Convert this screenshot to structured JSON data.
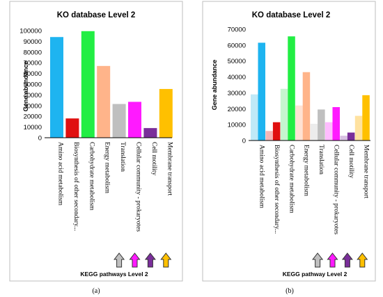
{
  "chart_data": [
    {
      "type": "bar",
      "title": "KO database Level 2",
      "ylabel": "Gene abundance",
      "ylim": [
        0,
        100000
      ],
      "yticks": [
        0,
        10000,
        20000,
        30000,
        40000,
        50000,
        60000,
        70000,
        80000,
        90000,
        100000
      ],
      "categories": [
        "Amino acid metabolism",
        "Biosynthesis of other secondary...",
        "Carbohydrate metabolism",
        "Energy metabolism",
        "Translation",
        "Cellular community - prokaryotes",
        "Cell motility",
        "Membrane transport"
      ],
      "values": [
        94000,
        18000,
        99500,
        67000,
        31500,
        33500,
        9000,
        45500
      ],
      "colors": [
        "#1eb4f0",
        "#e01010",
        "#22ee44",
        "#ffb48a",
        "#bfbfbf",
        "#ff1aff",
        "#7a2e9a",
        "#ffc000"
      ],
      "footer": "KEGG pathways Level 2",
      "arrow_colors": [
        "#bfbfbf",
        "#ff1aff",
        "#7a2e9a",
        "#ffc000"
      ],
      "grid": false,
      "legend": "none",
      "label": "(a)"
    },
    {
      "type": "bar",
      "title": "KO database Level 2",
      "ylabel": "Gene abundance",
      "ylim": [
        0,
        70000
      ],
      "yticks": [
        0,
        10000,
        20000,
        30000,
        40000,
        50000,
        60000,
        70000
      ],
      "categories": [
        "Amino acid metabolism",
        "Biosynthesis of other secondary...",
        "Carbohydrate metabolism",
        "Energy metabolism",
        "Translation",
        "Cellular community - prokaryotes",
        "Cell motility",
        "Membrane transport"
      ],
      "series": [
        {
          "values": [
            29000,
            6000,
            32500,
            22000,
            10500,
            11500,
            3000,
            15500
          ],
          "colors": [
            "#bfe9f7",
            "#f5b5b5",
            "#c5f5cf",
            "#ffe2d3",
            "#ececec",
            "#ffbcff",
            "#d8bfe2",
            "#ffe2a0"
          ]
        },
        {
          "values": [
            61500,
            11500,
            65500,
            43000,
            19500,
            21000,
            5000,
            28500
          ],
          "colors": [
            "#1eb4f0",
            "#e01010",
            "#22ee44",
            "#ffb48a",
            "#bfbfbf",
            "#ff1aff",
            "#7a2e9a",
            "#ffc000"
          ]
        }
      ],
      "footer": "KEGG pathway Level 2",
      "arrow_colors": [
        "#bfbfbf",
        "#ff1aff",
        "#7a2e9a",
        "#ffc000"
      ],
      "grid": false,
      "legend": "none",
      "label": "(b)"
    }
  ]
}
